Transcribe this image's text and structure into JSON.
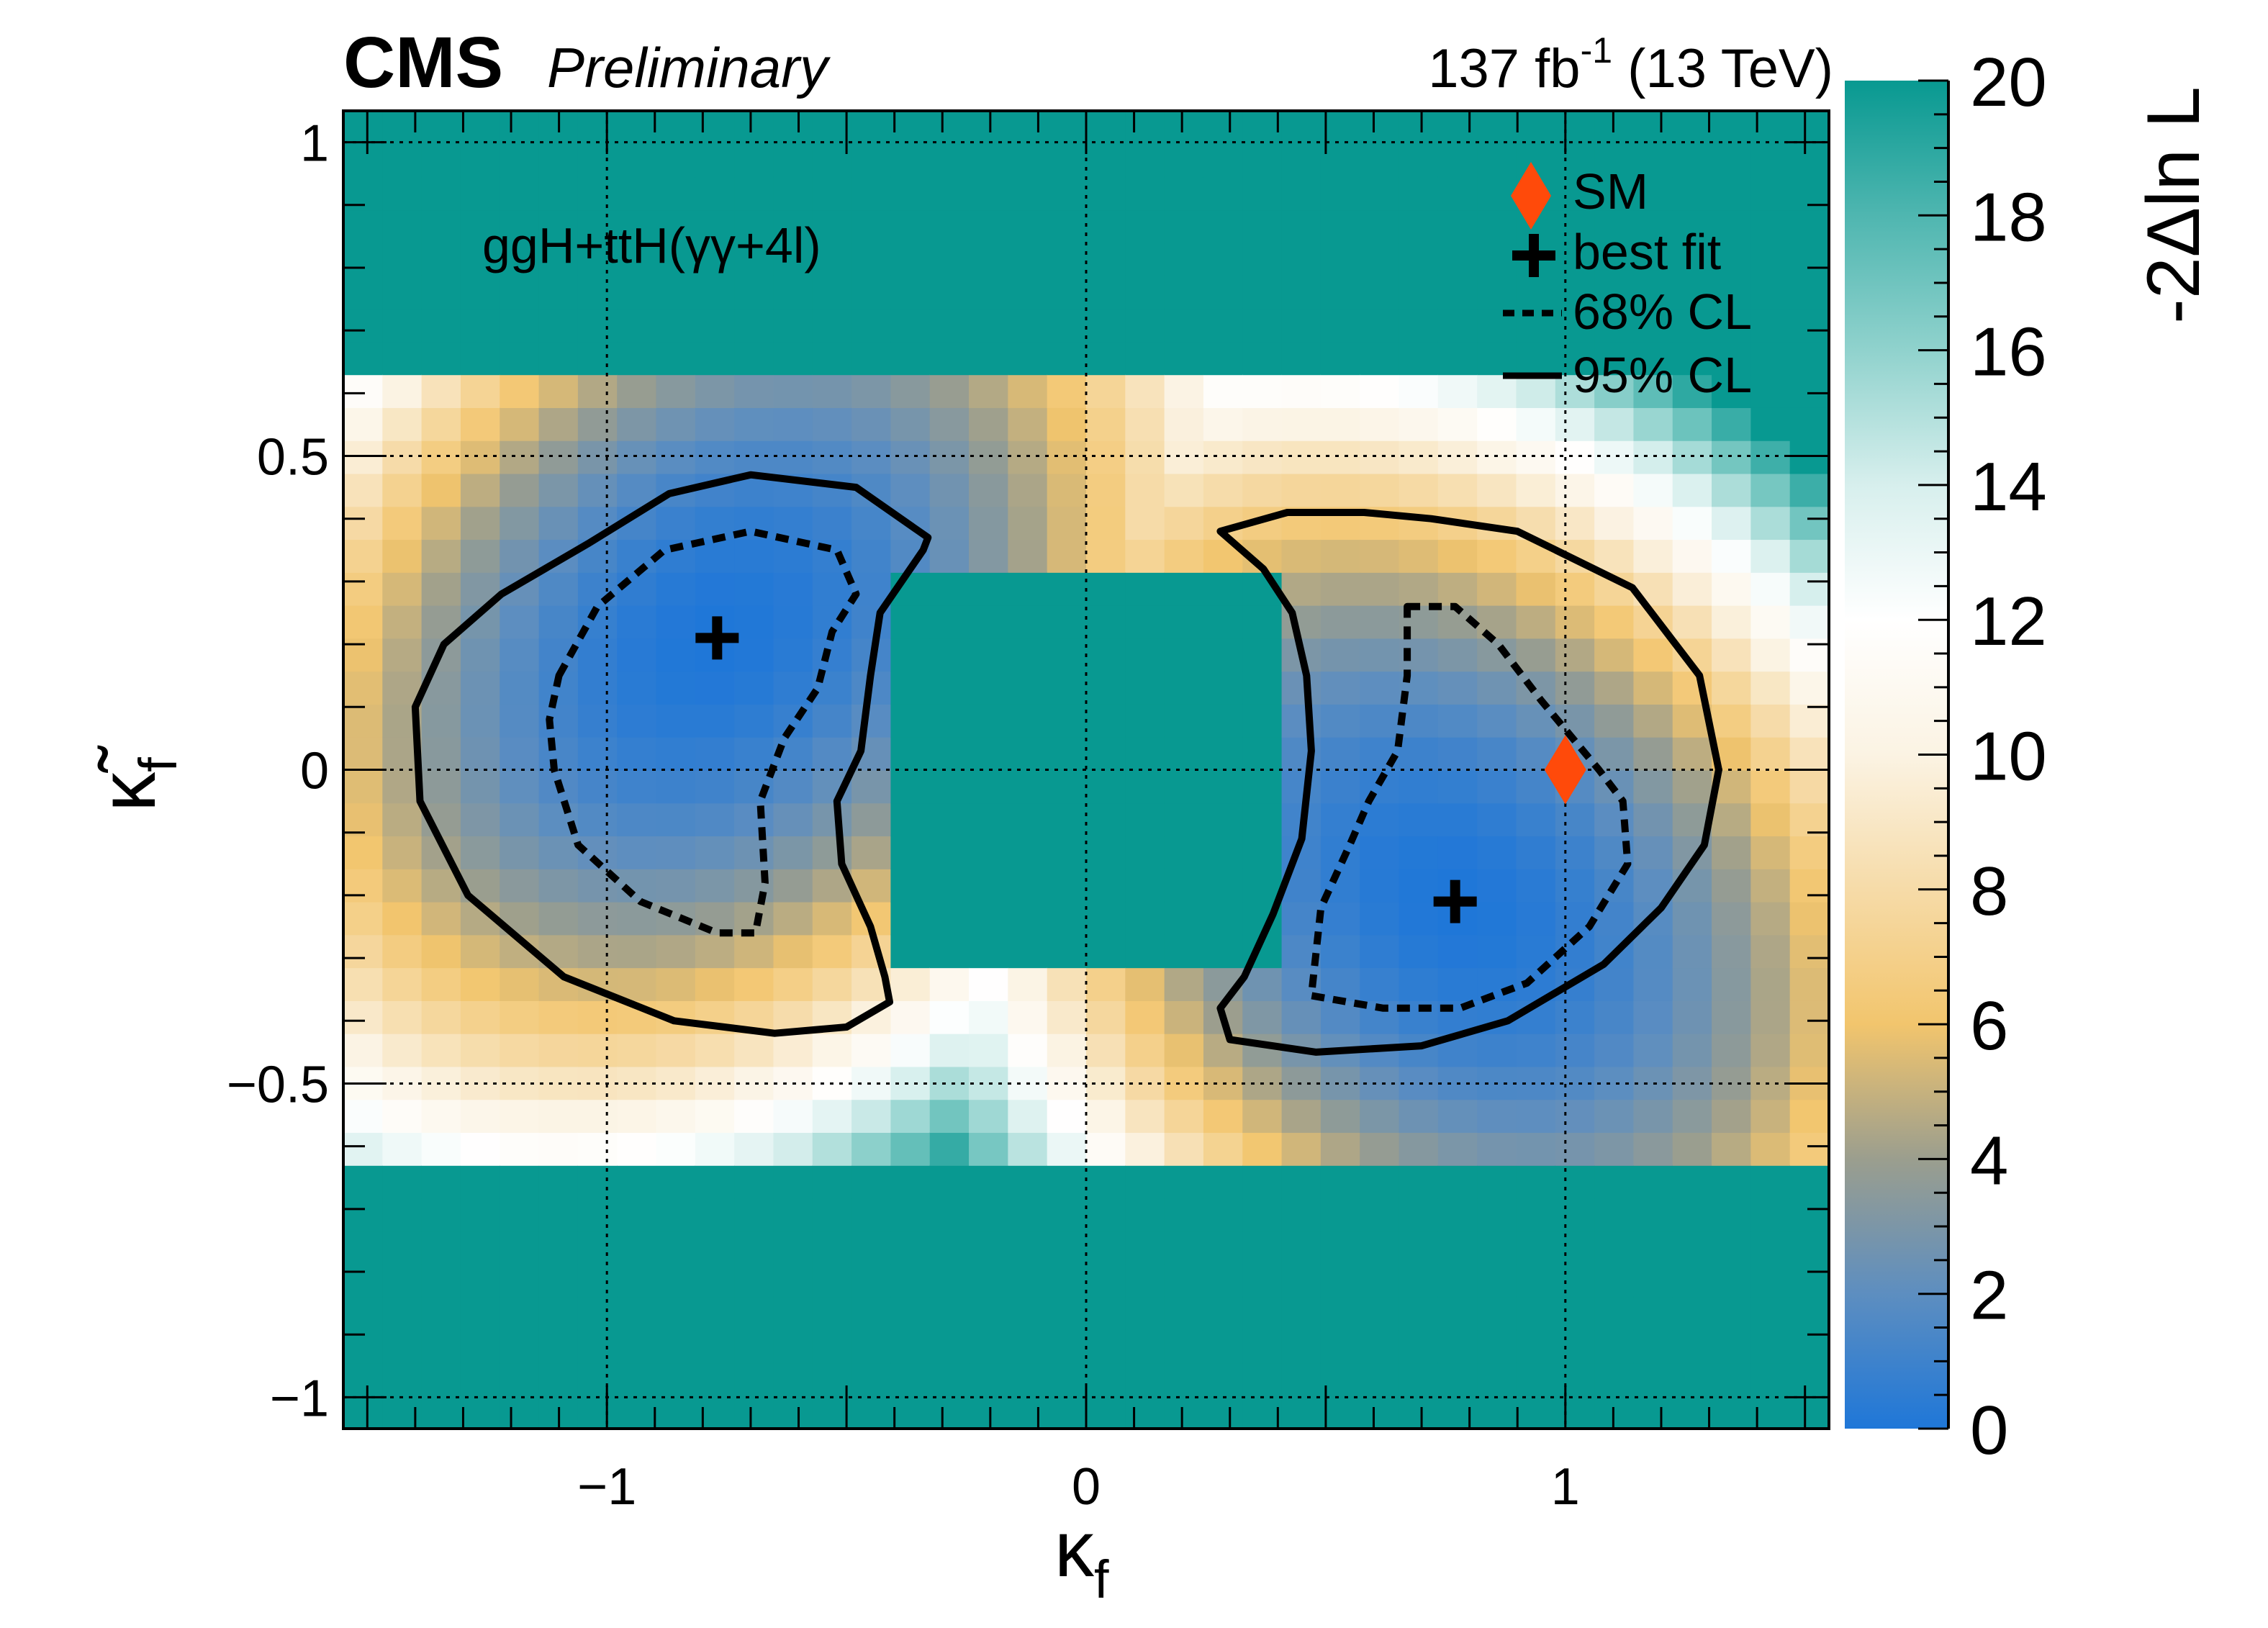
{
  "header": {
    "experiment": "CMS",
    "status": "Preliminary",
    "lumi": "137 fb",
    "lumi_exp": "-1",
    "energy": " (13 TeV)"
  },
  "chart_data": {
    "type": "heatmap",
    "annotation": "ggH+ttH(γγ+4l)",
    "xlabel": {
      "main": "κ",
      "sub": "f"
    },
    "ylabel": {
      "main": "κ̃",
      "sub": "f"
    },
    "zlabel": "-2Δln L",
    "xlim": [
      -1.55,
      1.55
    ],
    "ylim": [
      -1.05,
      1.05
    ],
    "zlim": [
      0,
      20
    ],
    "x_ticks": [
      {
        "v": -1,
        "label": "−1"
      },
      {
        "v": 0,
        "label": "0"
      },
      {
        "v": 1,
        "label": "1"
      }
    ],
    "y_ticks": [
      {
        "v": 1,
        "label": "1"
      },
      {
        "v": 0.5,
        "label": "0.5"
      },
      {
        "v": 0,
        "label": "0"
      },
      {
        "v": -0.5,
        "label": "−0.5"
      },
      {
        "v": -1,
        "label": "−1"
      }
    ],
    "z_ticks": [
      0,
      2,
      4,
      6,
      8,
      10,
      12,
      14,
      16,
      18,
      20
    ],
    "grid_lines": {
      "x": [
        -1,
        0,
        1
      ],
      "y": [
        -1,
        -0.5,
        0,
        0.5,
        1
      ]
    },
    "colormap": [
      "#1f77d8",
      "#5d8ec0",
      "#9b9e8e",
      "#f2c56d",
      "#f6dba8",
      "#fbf3e3",
      "#ffffff",
      "#d7efed",
      "#90d2cd",
      "#4fb6b0",
      "#089991"
    ],
    "legend": {
      "position": "top-right",
      "entries": [
        {
          "label": "SM",
          "marker": "diamond",
          "color": "#ff4a0a"
        },
        {
          "label": "best fit",
          "marker": "cross",
          "color": "#000000"
        },
        {
          "label": "68% CL",
          "marker": "dashed-line",
          "color": "#000000"
        },
        {
          "label": "95% CL",
          "marker": "solid-line",
          "color": "#000000"
        }
      ]
    },
    "best_fit_points": [
      {
        "x": -0.77,
        "y": 0.21
      },
      {
        "x": 0.77,
        "y": -0.21
      }
    ],
    "sm_point": {
      "x": 1.0,
      "y": 0.0
    },
    "contour_95": [
      [
        [
          -1.22,
          0.28
        ],
        [
          -1.04,
          0.36
        ],
        [
          -0.87,
          0.44
        ],
        [
          -0.7,
          0.47
        ],
        [
          -0.48,
          0.45
        ],
        [
          -0.33,
          0.37
        ],
        [
          -0.34,
          0.35
        ],
        [
          -0.43,
          0.25
        ],
        [
          -0.45,
          0.15
        ],
        [
          -0.47,
          0.03
        ],
        [
          -0.52,
          -0.05
        ],
        [
          -0.51,
          -0.15
        ],
        [
          -0.45,
          -0.25
        ],
        [
          -0.42,
          -0.33
        ],
        [
          -0.41,
          -0.37
        ],
        [
          -0.5,
          -0.41
        ],
        [
          -0.65,
          -0.42
        ],
        [
          -0.86,
          -0.4
        ],
        [
          -1.09,
          -0.33
        ],
        [
          -1.29,
          -0.2
        ],
        [
          -1.39,
          -0.05
        ],
        [
          -1.4,
          0.1
        ],
        [
          -1.34,
          0.2
        ]
      ],
      [
        [
          0.28,
          0.38
        ],
        [
          0.42,
          0.41
        ],
        [
          0.58,
          0.41
        ],
        [
          0.72,
          0.4
        ],
        [
          0.9,
          0.38
        ],
        [
          1.14,
          0.29
        ],
        [
          1.28,
          0.15
        ],
        [
          1.32,
          0.0
        ],
        [
          1.29,
          -0.12
        ],
        [
          1.2,
          -0.22
        ],
        [
          1.08,
          -0.31
        ],
        [
          0.88,
          -0.4
        ],
        [
          0.7,
          -0.44
        ],
        [
          0.48,
          -0.45
        ],
        [
          0.3,
          -0.43
        ],
        [
          0.28,
          -0.38
        ],
        [
          0.33,
          -0.33
        ],
        [
          0.39,
          -0.23
        ],
        [
          0.45,
          -0.11
        ],
        [
          0.47,
          0.03
        ],
        [
          0.46,
          0.15
        ],
        [
          0.43,
          0.25
        ],
        [
          0.37,
          0.32
        ]
      ]
    ],
    "contour_68": [
      [
        [
          -1.1,
          0.15
        ],
        [
          -1.02,
          0.26
        ],
        [
          -0.88,
          0.35
        ],
        [
          -0.7,
          0.38
        ],
        [
          -0.52,
          0.35
        ],
        [
          -0.48,
          0.28
        ],
        [
          -0.53,
          0.22
        ],
        [
          -0.56,
          0.13
        ],
        [
          -0.63,
          0.05
        ],
        [
          -0.68,
          -0.05
        ],
        [
          -0.67,
          -0.18
        ],
        [
          -0.69,
          -0.26
        ],
        [
          -0.77,
          -0.26
        ],
        [
          -0.93,
          -0.21
        ],
        [
          -1.06,
          -0.12
        ],
        [
          -1.11,
          0.0
        ],
        [
          -1.12,
          0.08
        ]
      ],
      [
        [
          0.67,
          0.26
        ],
        [
          0.77,
          0.26
        ],
        [
          0.86,
          0.2
        ],
        [
          0.95,
          0.11
        ],
        [
          1.07,
          0.0
        ],
        [
          1.12,
          -0.05
        ],
        [
          1.13,
          -0.15
        ],
        [
          1.05,
          -0.25
        ],
        [
          0.92,
          -0.34
        ],
        [
          0.78,
          -0.38
        ],
        [
          0.62,
          -0.38
        ],
        [
          0.47,
          -0.36
        ],
        [
          0.49,
          -0.22
        ],
        [
          0.55,
          -0.12
        ],
        [
          0.59,
          -0.05
        ],
        [
          0.65,
          0.03
        ],
        [
          0.67,
          0.15
        ]
      ]
    ]
  }
}
